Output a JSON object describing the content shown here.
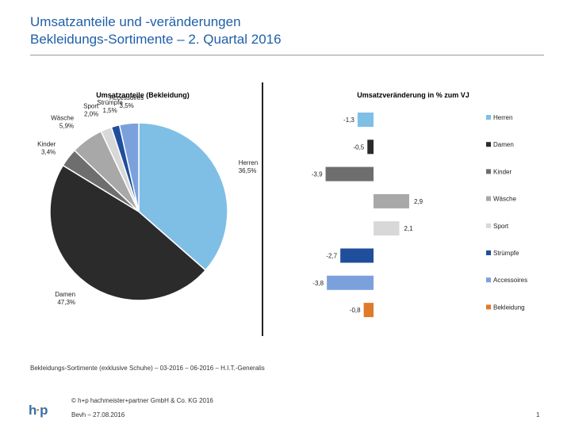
{
  "header": {
    "title_line1": "Umsatzanteile und -veränderungen",
    "title_line2": "Bekleidungs-Sortimente – 2. Quartal 2016"
  },
  "chart_data": [
    {
      "type": "pie",
      "title": "Umsatzanteile (Bekleidung)",
      "categories": [
        "Herren",
        "Damen",
        "Kinder",
        "Wäsche",
        "Sport",
        "Strümpfe",
        "Accessoires"
      ],
      "values": [
        36.5,
        47.3,
        3.4,
        5.9,
        2.0,
        1.5,
        3.5
      ],
      "labels": [
        "36,5%",
        "47,3%",
        "3,4%",
        "5,9%",
        "2,0%",
        "1,5%",
        "3,5%"
      ],
      "colors": [
        "#7fbfe6",
        "#2b2b2b",
        "#6e6e6e",
        "#a8a8a8",
        "#d8d8d8",
        "#1f4e9c",
        "#7ba1dc"
      ]
    },
    {
      "type": "bar",
      "orientation": "horizontal",
      "title": "Umsatzveränderung in % zum VJ",
      "categories": [
        "Herren",
        "Damen",
        "Kinder",
        "Wäsche",
        "Sport",
        "Strümpfe",
        "Accessoires",
        "Bekleidung"
      ],
      "values": [
        -1.3,
        -0.5,
        -3.9,
        2.9,
        2.1,
        -2.7,
        -3.8,
        -0.8
      ],
      "labels": [
        "-1,3",
        "-0,5",
        "-3,9",
        "2,9",
        "2,1",
        "-2,7",
        "-3,8",
        "-0,8"
      ],
      "colors": [
        "#7fbfe6",
        "#2b2b2b",
        "#6e6e6e",
        "#a8a8a8",
        "#d8d8d8",
        "#1f4e9c",
        "#7ba1dc",
        "#e07a2b"
      ],
      "legend_position": "right",
      "grid": false
    }
  ],
  "footer": {
    "source": "Bekleidungs-Sortimente (exklusive Schuhe) – 03-2016 – 06-2016 – H.I.T.-Generalis",
    "copyright": "© h+p hachmeister+partner GmbH & Co. KG 2016",
    "author_date": "Bevh – 27.08.2016",
    "page_number": "1",
    "logo_text_a": "h",
    "logo_text_dot": "·",
    "logo_text_b": "p"
  }
}
